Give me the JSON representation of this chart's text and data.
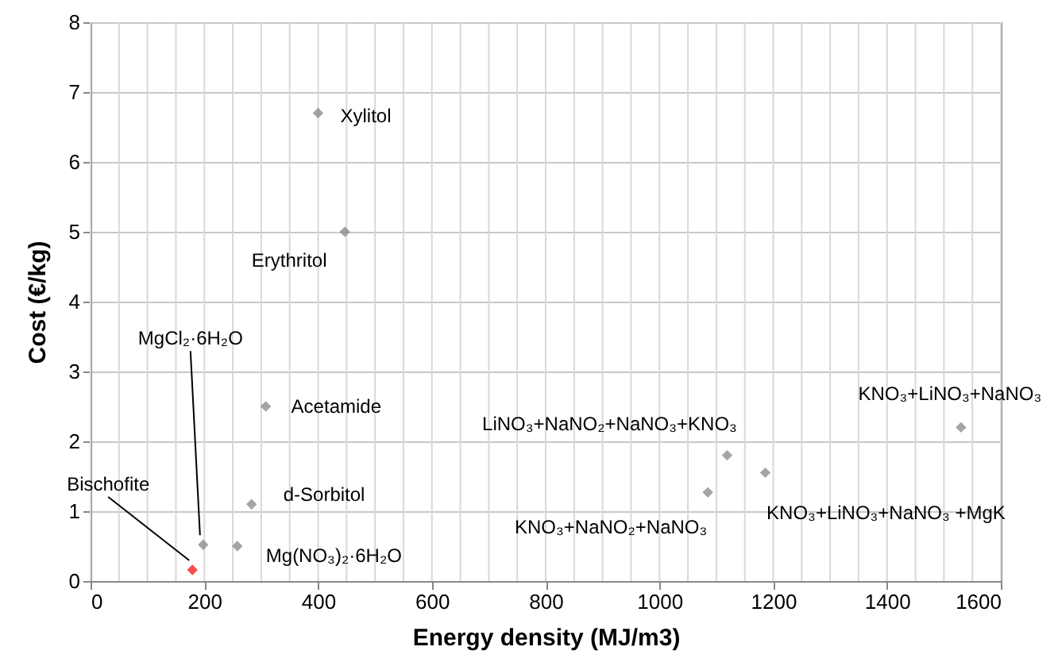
{
  "chart_data": {
    "type": "scatter",
    "xlabel": "Energy density (MJ/m3)",
    "ylabel": "Cost (€/kg)",
    "x": [
      400,
      447,
      308,
      283,
      198,
      258,
      179,
      1119,
      1085,
      1186,
      1530
    ],
    "values": [
      6.7,
      5.0,
      2.5,
      1.1,
      0.52,
      0.5,
      0.16,
      1.8,
      1.27,
      1.55,
      2.2
    ],
    "colors": [
      "#7f7f7f",
      "#7f7f7f",
      "#7f7f7f",
      "#7f7f7f",
      "#7f7f7f",
      "#7f7f7f",
      "#ff0000",
      "#7f7f7f",
      "#7f7f7f",
      "#7f7f7f",
      "#7f7f7f"
    ],
    "marker": "diamond",
    "xlim": [
      0,
      1600
    ],
    "xticks": [
      0,
      200,
      400,
      600,
      800,
      1000,
      1200,
      1400,
      1600
    ],
    "ylim": [
      0,
      8
    ],
    "yticks": [
      0,
      1,
      2,
      3,
      4,
      5,
      6,
      7,
      8
    ],
    "grid": true,
    "annotations": [
      {
        "text": "Xylitol",
        "x": 400,
        "y": 6.7
      },
      {
        "text": "Erythritol",
        "x": 447,
        "y": 5.0
      },
      {
        "text": "Acetamide",
        "x": 308,
        "y": 2.5
      },
      {
        "text": "d-Sorbitol",
        "x": 283,
        "y": 1.1
      },
      {
        "text": "MgCl₂·6H₂O",
        "x": 198,
        "y": 0.52
      },
      {
        "text": "Mg(NO₃)₂·6H₂O",
        "x": 258,
        "y": 0.5
      },
      {
        "text": "Bischofite",
        "x": 179,
        "y": 0.16
      },
      {
        "text": "LiNO₃+NaNO₂+NaNO₃+KNO₃",
        "x": 1119,
        "y": 1.8
      },
      {
        "text": "KNO₃+NaNO₂+NaNO₃",
        "x": 1085,
        "y": 1.27
      },
      {
        "text": "KNO₃+LiNO₃+NaNO₃ +MgK",
        "x": 1186,
        "y": 1.55
      },
      {
        "text": "KNO₃+LiNO₃+NaNO₃",
        "x": 1530,
        "y": 2.2
      }
    ]
  }
}
